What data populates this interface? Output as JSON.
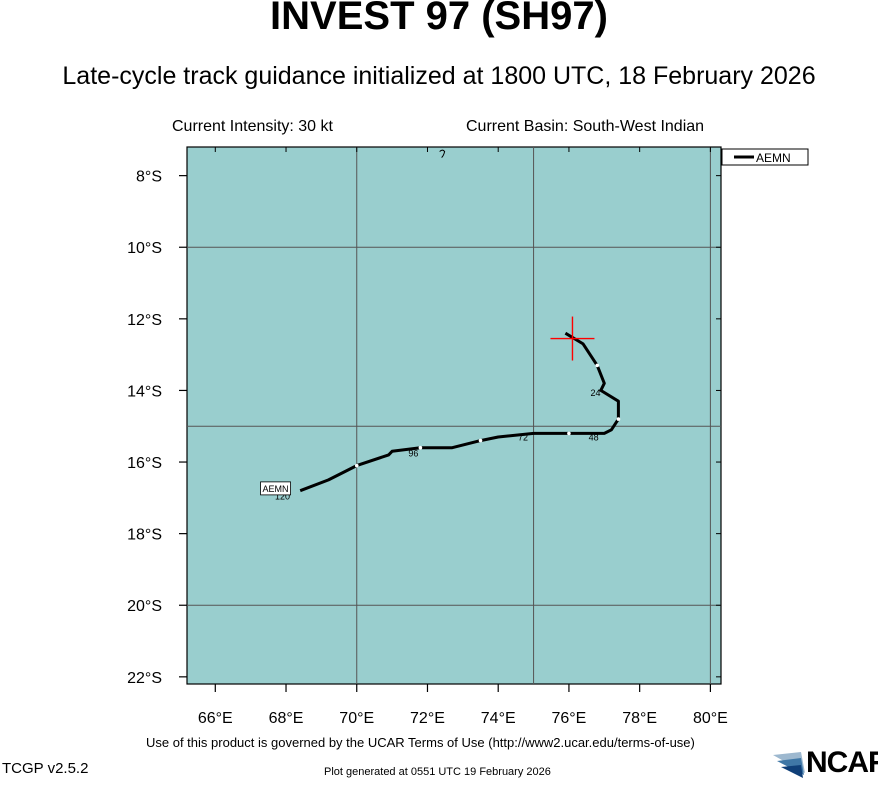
{
  "header": {
    "title": "INVEST 97 (SH97)",
    "subtitle": "Late-cycle track guidance initialized at 1800 UTC, 18 February 2026",
    "current_intensity": "Current Intensity: 30 kt",
    "current_basin": "Current Basin: South-West Indian"
  },
  "footer": {
    "terms": "Use of this product is governed by the UCAR Terms of Use (http://www2.ucar.edu/terms-of-use)",
    "version": "TCGP v2.5.2",
    "generated": "Plot generated at 0551 UTC   19 February 2026",
    "logo_text": "NCAR"
  },
  "colors": {
    "ocean": "#99cece",
    "track": "#000000",
    "grid": "#555555",
    "current_position_marker": "#ff0000"
  },
  "chart_data": {
    "type": "line",
    "xlim": [
      65.2,
      80.3
    ],
    "ylim": [
      -22.2,
      -7.2
    ],
    "x_ticks": [
      66,
      68,
      70,
      72,
      74,
      76,
      78,
      80
    ],
    "x_tick_labels": [
      "66°E",
      "68°E",
      "70°E",
      "72°E",
      "74°E",
      "76°E",
      "78°E",
      "80°E"
    ],
    "y_ticks": [
      -8,
      -10,
      -12,
      -14,
      -16,
      -18,
      -20,
      -22
    ],
    "y_tick_labels": [
      "8°S",
      "10°S",
      "12°S",
      "14°S",
      "16°S",
      "18°S",
      "20°S",
      "22°S"
    ],
    "grid_lon": [
      70,
      75,
      80
    ],
    "grid_lat": [
      -10,
      -15,
      -20
    ],
    "legend": {
      "entries": [
        "AEMN"
      ],
      "position": "top-right"
    },
    "current_position": {
      "lon": 76.1,
      "lat": -12.55
    },
    "series": [
      {
        "name": "AEMN",
        "points": [
          {
            "lon": 75.9,
            "lat": -12.4
          },
          {
            "lon": 76.4,
            "lat": -12.7
          },
          {
            "lon": 76.8,
            "lat": -13.3
          },
          {
            "lon": 77.0,
            "lat": -13.8
          },
          {
            "lon": 76.9,
            "lat": -14.0
          },
          {
            "lon": 77.4,
            "lat": -14.3
          },
          {
            "lon": 77.4,
            "lat": -14.8
          },
          {
            "lon": 77.2,
            "lat": -15.1
          },
          {
            "lon": 77.0,
            "lat": -15.2
          },
          {
            "lon": 76.0,
            "lat": -15.2
          },
          {
            "lon": 75.0,
            "lat": -15.2
          },
          {
            "lon": 74.0,
            "lat": -15.3
          },
          {
            "lon": 73.5,
            "lat": -15.4
          },
          {
            "lon": 72.7,
            "lat": -15.6
          },
          {
            "lon": 71.8,
            "lat": -15.6
          },
          {
            "lon": 71.0,
            "lat": -15.7
          },
          {
            "lon": 70.9,
            "lat": -15.8
          },
          {
            "lon": 70.0,
            "lat": -16.1
          },
          {
            "lon": 69.2,
            "lat": -16.5
          },
          {
            "lon": 68.4,
            "lat": -16.8
          }
        ],
        "markers": [
          {
            "lon": 76.8,
            "lat": -13.3
          },
          {
            "lon": 77.4,
            "lat": -14.8
          },
          {
            "lon": 76.0,
            "lat": -15.2
          },
          {
            "lon": 73.5,
            "lat": -15.4
          },
          {
            "lon": 71.8,
            "lat": -15.6
          },
          {
            "lon": 70.0,
            "lat": -16.1
          }
        ],
        "hour_labels": [
          {
            "text": "24",
            "lon": 76.75,
            "lat": -14.15
          },
          {
            "text": "48",
            "lon": 76.7,
            "lat": -15.4
          },
          {
            "text": "72",
            "lon": 74.7,
            "lat": -15.4
          },
          {
            "text": "96",
            "lon": 71.6,
            "lat": -15.85
          },
          {
            "text": "120",
            "lon": 67.9,
            "lat": -17.05
          }
        ],
        "end_label": {
          "text": "AEMN",
          "lon": 68.1,
          "lat": -16.75
        }
      }
    ]
  },
  "map_features": {
    "island_speck": {
      "lon": 72.4,
      "lat": -7.3
    }
  }
}
